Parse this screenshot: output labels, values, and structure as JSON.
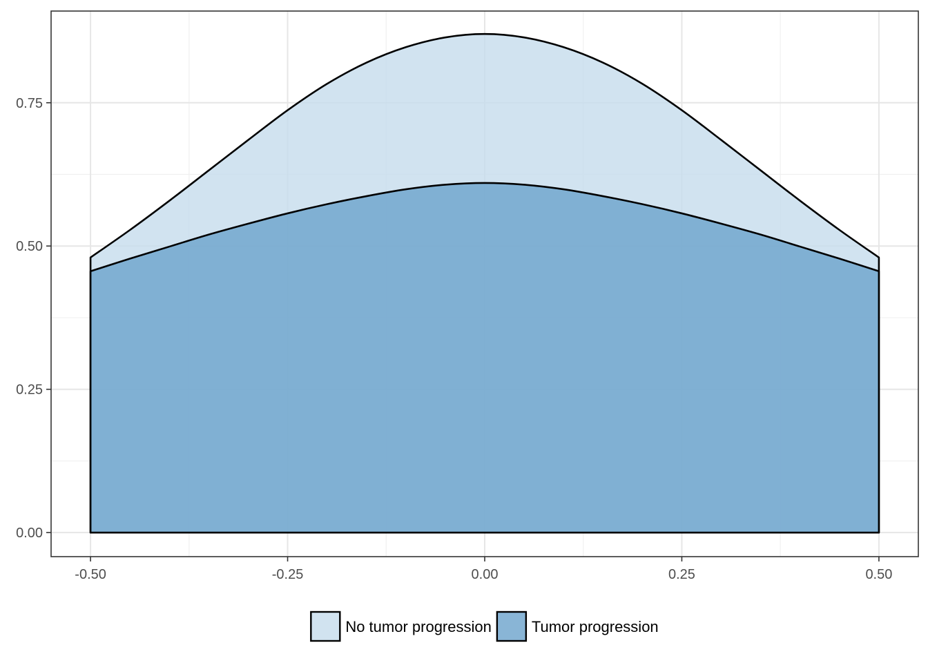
{
  "chart_data": {
    "type": "area",
    "title": "",
    "xlabel": "",
    "ylabel": "",
    "xlim": [
      -0.55,
      0.55
    ],
    "ylim": [
      -0.042,
      0.91
    ],
    "x_ticks": [
      -0.5,
      -0.25,
      0.0,
      0.25,
      0.5
    ],
    "x_tick_labels": [
      "-0.50",
      "-0.25",
      "0.00",
      "0.25",
      "0.50"
    ],
    "y_ticks": [
      0.0,
      0.25,
      0.5,
      0.75
    ],
    "y_tick_labels": [
      "0.00",
      "0.25",
      "0.50",
      "0.75"
    ],
    "grid": true,
    "legend_position": "bottom",
    "series": [
      {
        "name": "No tumor progression",
        "color": "#c6dcec",
        "x": [
          -0.5,
          -0.45,
          -0.4,
          -0.35,
          -0.3,
          -0.25,
          -0.2,
          -0.15,
          -0.1,
          -0.05,
          0.0,
          0.05,
          0.1,
          0.15,
          0.2,
          0.25,
          0.3,
          0.35,
          0.4,
          0.45,
          0.5
        ],
        "values": [
          0.48,
          0.528,
          0.579,
          0.632,
          0.685,
          0.737,
          0.783,
          0.82,
          0.847,
          0.864,
          0.87,
          0.864,
          0.847,
          0.82,
          0.783,
          0.737,
          0.685,
          0.632,
          0.579,
          0.528,
          0.48
        ]
      },
      {
        "name": "Tumor progression",
        "color": "#6ba3cc",
        "x": [
          -0.5,
          -0.45,
          -0.4,
          -0.35,
          -0.3,
          -0.25,
          -0.2,
          -0.15,
          -0.1,
          -0.05,
          0.0,
          0.05,
          0.1,
          0.15,
          0.2,
          0.25,
          0.3,
          0.35,
          0.4,
          0.45,
          0.5
        ],
        "values": [
          0.456,
          0.478,
          0.499,
          0.52,
          0.539,
          0.557,
          0.573,
          0.587,
          0.599,
          0.607,
          0.61,
          0.607,
          0.599,
          0.587,
          0.573,
          0.557,
          0.539,
          0.52,
          0.499,
          0.478,
          0.456
        ]
      }
    ]
  }
}
